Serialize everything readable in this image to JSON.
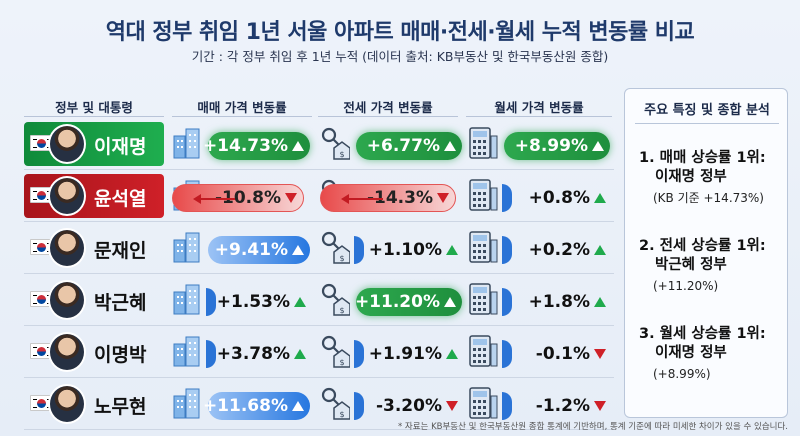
{
  "title": "역대 정부 취임 1년 서울 아파트 매매·전세·월세 누적 변동률 비교",
  "subtitle": "기간 : 각 정부 취임 후 1년 누적 (데이터 출처: KB부동산 및 한국부동산원 종합)",
  "columns": {
    "name": "정부 및 대통령",
    "sale": "매매 가격 변동률",
    "jeonse": "전세 가격 변동률",
    "monthly": "월세 가격 변동률"
  },
  "rows": [
    {
      "name": "이재명",
      "sale": "+14.73%",
      "jeonse": "+6.77%",
      "monthly": "+8.99%"
    },
    {
      "name": "윤석열",
      "sale": "-10.8%",
      "jeonse": "-14.3%",
      "monthly": "+0.8%"
    },
    {
      "name": "문재인",
      "sale": "+9.41%",
      "jeonse": "+1.10%",
      "monthly": "+0.2%"
    },
    {
      "name": "박근혜",
      "sale": "+1.53%",
      "jeonse": "+11.20%",
      "monthly": "+1.8%"
    },
    {
      "name": "이명박",
      "sale": "+3.78%",
      "jeonse": "+1.91%",
      "monthly": "-0.1%"
    },
    {
      "name": "노무현",
      "sale": "+11.68%",
      "jeonse": "-3.20%",
      "monthly": "-1.2%"
    }
  ],
  "side": {
    "title": "주요 특징 및 종합 분석",
    "items": [
      {
        "l1": "1. 매매 상승률 1위:",
        "l2": "이재명 정부",
        "l3": "(KB 기준 +14.73%)"
      },
      {
        "l1": "2. 전세 상승률 1위:",
        "l2": "박근혜 정부",
        "l3": "(+11.20%)"
      },
      {
        "l1": "3. 월세 상승률 1위:",
        "l2": "이재명 정부",
        "l3": "(+8.99%)"
      }
    ]
  },
  "footnote": "* 자료는 KB부동산 및 한국부동산원 종합 통계에 기반하며, 통계 기준에 따라 미세한 차이가 있을 수 있습니다.",
  "colors": {
    "up": "#1faa4c",
    "down": "#cf2028",
    "accent_blue": "#2677e0",
    "title": "#1f3a6b"
  },
  "icons": {
    "sale": "apartment-building-icon",
    "jeonse": "house-key-icon",
    "monthly": "calculator-icon"
  },
  "chart_data": {
    "type": "table",
    "title": "역대 정부 취임 1년 서울 아파트 매매·전세·월세 누적 변동률 비교",
    "categories": [
      "이재명",
      "윤석열",
      "문재인",
      "박근혜",
      "이명박",
      "노무현"
    ],
    "series": [
      {
        "name": "매매 가격 변동률",
        "values": [
          14.73,
          -10.8,
          9.41,
          1.53,
          3.78,
          11.68
        ]
      },
      {
        "name": "전세 가격 변동률",
        "values": [
          6.77,
          -14.3,
          1.1,
          11.2,
          1.91,
          -3.2
        ]
      },
      {
        "name": "월세 가격 변동률",
        "values": [
          8.99,
          0.8,
          0.2,
          1.8,
          -0.1,
          -1.2
        ]
      }
    ]
  }
}
